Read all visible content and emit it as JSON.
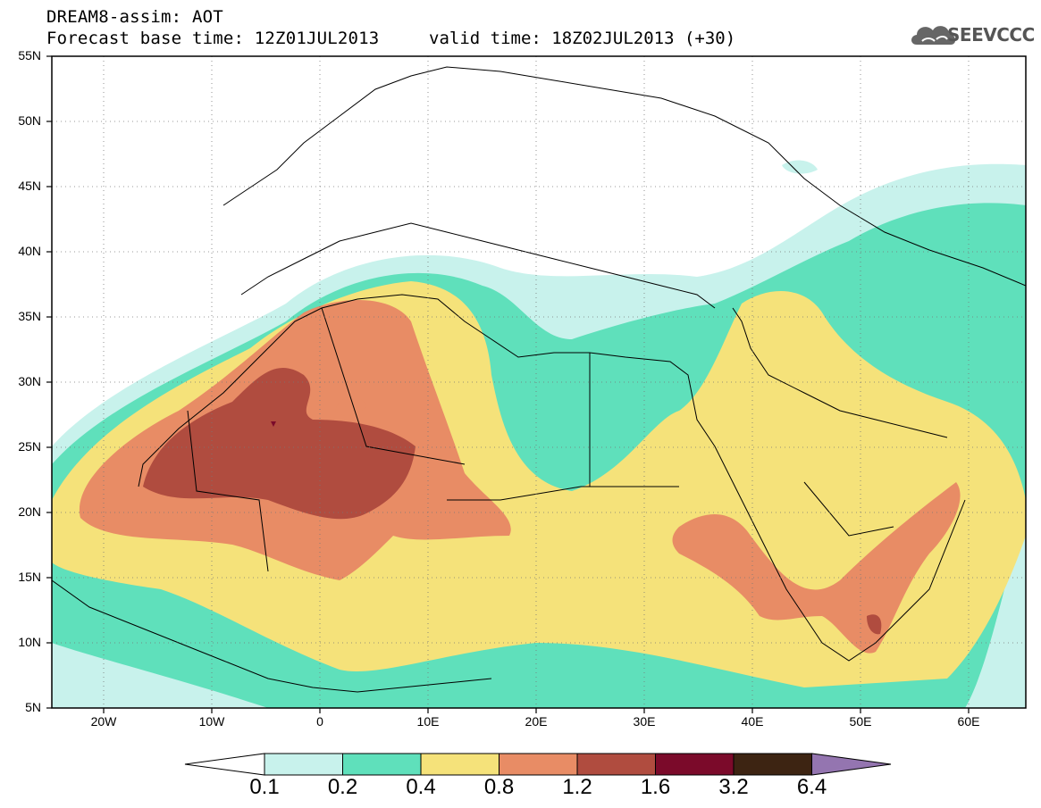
{
  "header": {
    "title_line1": "DREAM8-assim: AOT",
    "title_line2": "Forecast base time: 12Z01JUL2013",
    "valid_time": "valid time: 18Z02JUL2013 (+30)",
    "logo_text": "SEEVCCC",
    "logo_icon": "cloud-icon"
  },
  "axes": {
    "lat_labels": [
      {
        "id": "55",
        "text": "55N"
      },
      {
        "id": "50",
        "text": "50N"
      },
      {
        "id": "45",
        "text": "45N"
      },
      {
        "id": "40",
        "text": "40N"
      },
      {
        "id": "35",
        "text": "35N"
      },
      {
        "id": "30",
        "text": "30N"
      },
      {
        "id": "25",
        "text": "25N"
      },
      {
        "id": "20",
        "text": "20N"
      },
      {
        "id": "15",
        "text": "15N"
      },
      {
        "id": "10",
        "text": "10N"
      },
      {
        "id": "5",
        "text": "5N"
      }
    ],
    "lon_labels": [
      {
        "id": "w20",
        "text": "20W"
      },
      {
        "id": "w10",
        "text": "10W"
      },
      {
        "id": "0",
        "text": "0"
      },
      {
        "id": "e10",
        "text": "10E"
      },
      {
        "id": "e20",
        "text": "20E"
      },
      {
        "id": "e30",
        "text": "30E"
      },
      {
        "id": "e40",
        "text": "40E"
      },
      {
        "id": "e50",
        "text": "50E"
      },
      {
        "id": "e60",
        "text": "60E"
      }
    ],
    "lon_range": [
      -25,
      65
    ],
    "lat_range": [
      5,
      55
    ]
  },
  "colorbar": {
    "labels": [
      "0.1",
      "0.2",
      "0.4",
      "0.8",
      "1.2",
      "1.6",
      "3.2",
      "6.4"
    ],
    "colors": [
      "#c8f2ec",
      "#5fe0bb",
      "#f5e27a",
      "#e88c65",
      "#b04c3f",
      "#7b0a2a",
      "#3d2412",
      "#9475b0"
    ],
    "under_color": "#ffffff",
    "over_color": "#9475b0"
  }
}
